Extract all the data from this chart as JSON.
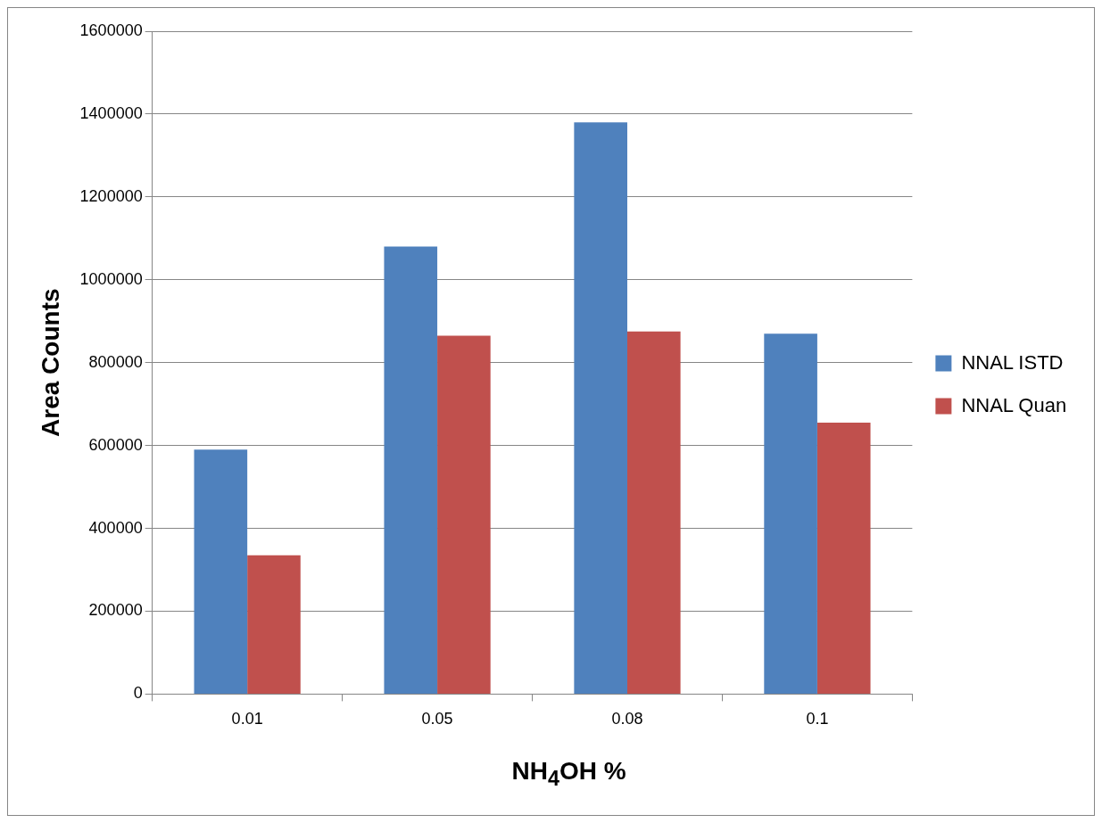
{
  "chart_data": {
    "type": "bar",
    "xlabel": "NH$_{4}$OH %",
    "ylabel": "Area Counts",
    "categories": [
      "0.01",
      "0.05",
      "0.08",
      "0.1"
    ],
    "series": [
      {
        "name": "NNAL ISTD",
        "color": "#4f81bd",
        "values": [
          590000,
          1080000,
          1380000,
          870000
        ]
      },
      {
        "name": "NNAL Quan",
        "color": "#c0504d",
        "values": [
          335000,
          865000,
          875000,
          655000
        ]
      }
    ],
    "ylim": [
      0,
      1600000
    ],
    "yticks": [
      0,
      200000,
      400000,
      600000,
      800000,
      1000000,
      1200000,
      1400000,
      1600000
    ],
    "grid": "y",
    "legend": "right"
  }
}
